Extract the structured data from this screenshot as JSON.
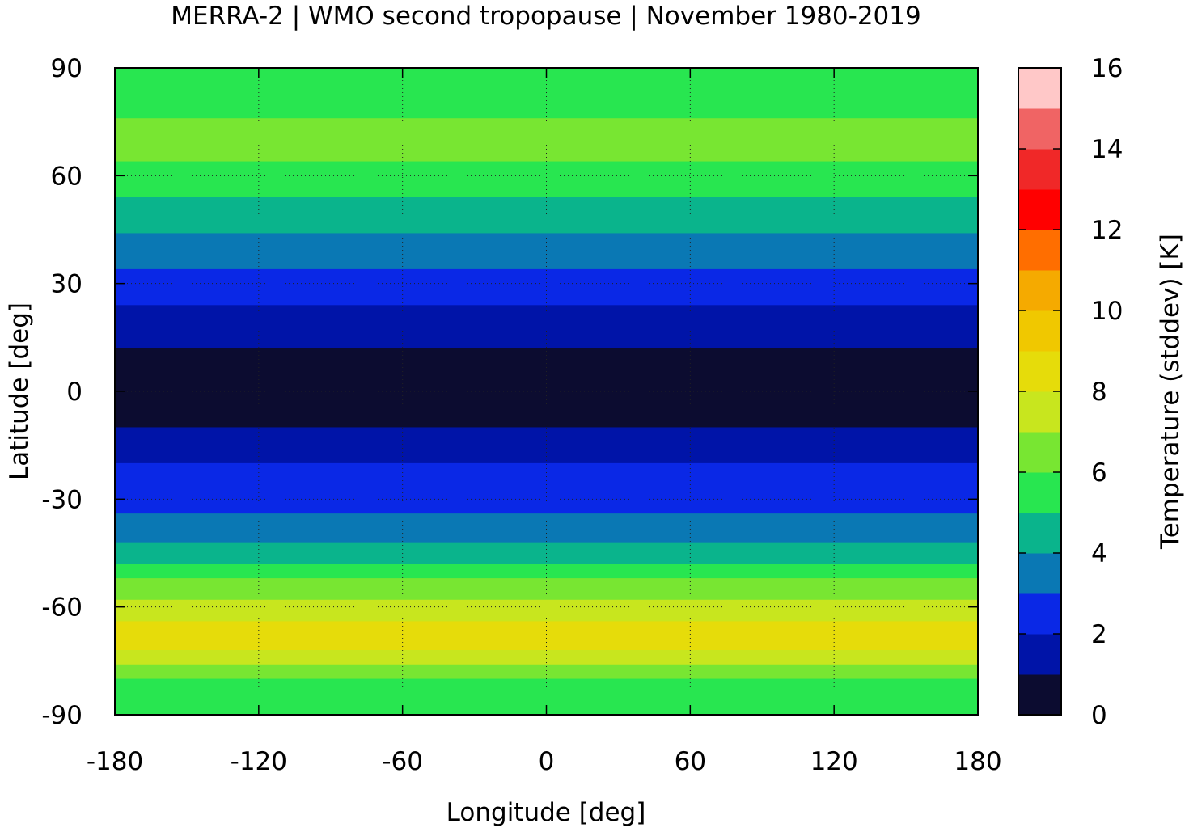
{
  "chart_data": {
    "type": "heatmap",
    "title": "MERRA-2 | WMO second tropopause | November 1980-2019",
    "xlabel": "Longitude [deg]",
    "ylabel": "Latitude [deg]",
    "colorbar_label": "Temperature (stddev) [K]",
    "xlim": [
      -180,
      180
    ],
    "ylim": [
      -90,
      90
    ],
    "xticks": [
      -180,
      -120,
      -60,
      0,
      60,
      120,
      180
    ],
    "xtick_labels": [
      "-180",
      "-120",
      "-60",
      "0",
      "60",
      "120",
      "180"
    ],
    "yticks": [
      -90,
      -60,
      -30,
      0,
      30,
      60,
      90
    ],
    "ytick_labels": [
      "-90",
      "-60",
      "-30",
      "0",
      "30",
      "60",
      "90"
    ],
    "colorbar_range": [
      0,
      16
    ],
    "colorbar_ticks": [
      0,
      2,
      4,
      6,
      8,
      10,
      12,
      14,
      16
    ],
    "colorbar_tick_labels": [
      "0",
      "2",
      "4",
      "6",
      "8",
      "10",
      "12",
      "14",
      "16"
    ],
    "color_levels": [
      "#0c0c30",
      "#0014a8",
      "#0a28e6",
      "#0a78b4",
      "#0ab48c",
      "#28e650",
      "#78e632",
      "#c8e61e",
      "#e6dc0a",
      "#f0c800",
      "#f5aa00",
      "#ff6e00",
      "#ff0000",
      "#f02828",
      "#f06464",
      "#ffc8c8"
    ],
    "grid": true,
    "zonal_mean_profile": [
      {
        "lat": 90,
        "value": 5.0
      },
      {
        "lat": 80,
        "value": 5.5
      },
      {
        "lat": 70,
        "value": 6.5
      },
      {
        "lat": 60,
        "value": 5.5
      },
      {
        "lat": 50,
        "value": 4.5
      },
      {
        "lat": 40,
        "value": 3.5
      },
      {
        "lat": 30,
        "value": 2.5
      },
      {
        "lat": 20,
        "value": 1.5
      },
      {
        "lat": 10,
        "value": 0.8
      },
      {
        "lat": 0,
        "value": 0.7
      },
      {
        "lat": -10,
        "value": 0.9
      },
      {
        "lat": -20,
        "value": 2.0
      },
      {
        "lat": -30,
        "value": 2.5
      },
      {
        "lat": -40,
        "value": 3.5
      },
      {
        "lat": -50,
        "value": 5.5
      },
      {
        "lat": -60,
        "value": 7.5
      },
      {
        "lat": -70,
        "value": 8.5
      },
      {
        "lat": -80,
        "value": 6.0
      },
      {
        "lat": -90,
        "value": 5.0
      }
    ]
  }
}
